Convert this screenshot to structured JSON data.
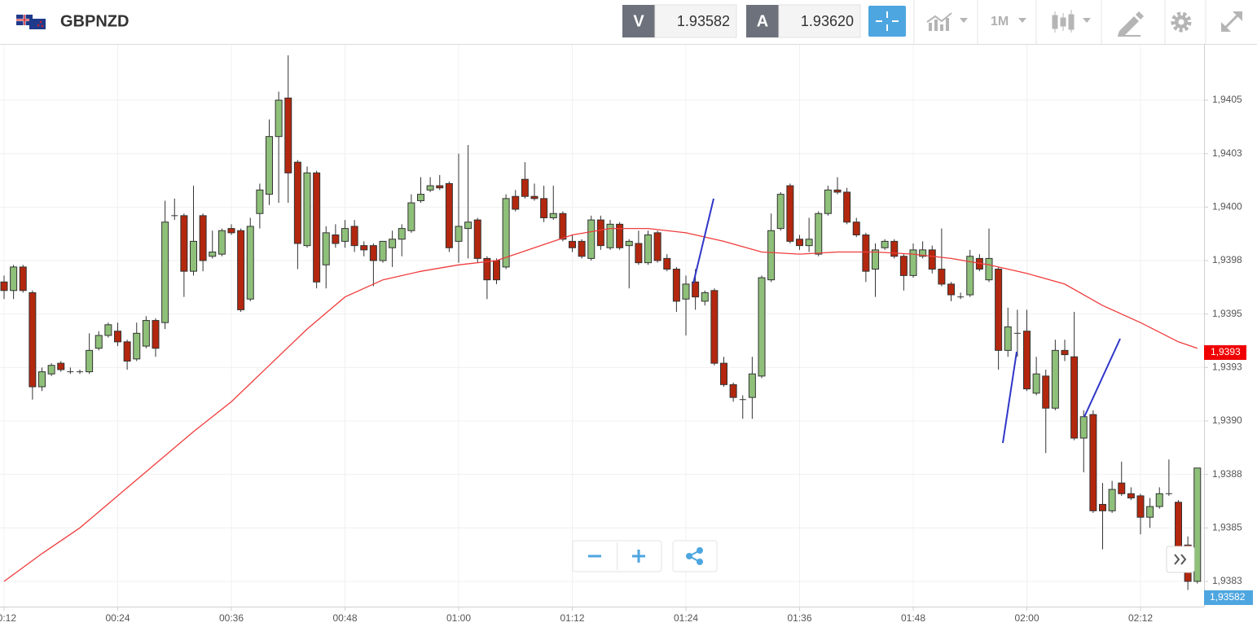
{
  "header": {
    "symbol": "GBPNZD",
    "bid_label": "V",
    "bid": "1.93582",
    "ask_label": "A",
    "ask": "1.93620",
    "timeframe": "1M"
  },
  "chart_data": {
    "type": "candlestick",
    "up_color": "#8fc07a",
    "down_color": "#b3270e",
    "grid": true,
    "xlim": [
      11.57,
      138.71
    ],
    "xticks": [
      {
        "value": 12,
        "label": "00:12"
      },
      {
        "value": 24,
        "label": "00:24"
      },
      {
        "value": 36,
        "label": "00:36"
      },
      {
        "value": 48,
        "label": "00:48"
      },
      {
        "value": 60,
        "label": "01:00"
      },
      {
        "value": 72,
        "label": "01:12"
      },
      {
        "value": 84,
        "label": "01:24"
      },
      {
        "value": 96,
        "label": "01:36"
      },
      {
        "value": 108,
        "label": "01:48"
      },
      {
        "value": 120,
        "label": "02:00"
      },
      {
        "value": 132,
        "label": "02:12"
      }
    ],
    "ylim": [
      1.938132,
      1.940759
    ],
    "yticks": [
      {
        "value": 1.9405,
        "label": "1,9405"
      },
      {
        "value": 1.94025,
        "label": "1,9403"
      },
      {
        "value": 1.94,
        "label": "1,9400"
      },
      {
        "value": 1.93975,
        "label": "1,9398"
      },
      {
        "value": 1.9395,
        "label": "1,9395"
      },
      {
        "value": 1.93925,
        "label": "1,9393"
      },
      {
        "value": 1.939,
        "label": "1,9390"
      },
      {
        "value": 1.93875,
        "label": "1,9388"
      },
      {
        "value": 1.9385,
        "label": "1,9385"
      },
      {
        "value": 1.93825,
        "label": "1,9383"
      }
    ],
    "x": [
      12,
      13,
      14,
      15,
      16,
      17,
      18,
      19,
      20,
      21,
      22,
      23,
      24,
      25,
      26,
      27,
      28,
      29,
      30,
      31,
      32,
      33,
      34,
      35,
      36,
      37,
      38,
      39,
      40,
      41,
      42,
      43,
      44,
      45,
      46,
      47,
      48,
      49,
      50,
      51,
      52,
      53,
      54,
      55,
      56,
      57,
      58,
      59,
      60,
      61,
      62,
      63,
      64,
      65,
      66,
      67,
      68,
      69,
      70,
      71,
      72,
      73,
      74,
      75,
      76,
      77,
      78,
      79,
      80,
      81,
      82,
      83,
      84,
      85,
      86,
      87,
      88,
      89,
      90,
      91,
      92,
      93,
      94,
      95,
      96,
      97,
      98,
      99,
      100,
      101,
      102,
      103,
      104,
      105,
      106,
      107,
      108,
      109,
      110,
      111,
      112,
      113,
      114,
      115,
      116,
      117,
      118,
      119,
      120,
      121,
      122,
      123,
      124,
      125,
      126,
      127,
      128,
      129,
      130,
      131,
      132,
      133,
      134,
      135,
      136,
      137,
      138
    ],
    "open": [
      1.93965,
      1.93961,
      1.93972,
      1.9396,
      1.93916,
      1.93922,
      1.93927,
      1.93923,
      1.93923,
      1.93923,
      1.93934,
      1.9394,
      1.93942,
      1.93937,
      1.93929,
      1.93935,
      1.93947,
      1.93946,
      1.93996,
      1.93996,
      1.9397,
      1.93996,
      1.93977,
      1.93978,
      1.9399,
      1.93989,
      1.93957,
      1.93997,
      1.94006,
      1.94033,
      1.94051,
      1.94021,
      1.93982,
      1.94016,
      1.93973,
      1.93987,
      1.93984,
      1.93991,
      1.93982,
      1.93982,
      1.93975,
      1.93981,
      1.93985,
      1.93989,
      1.94003,
      1.94008,
      1.9401,
      1.94011,
      1.93984,
      1.9399,
      1.93994,
      1.93976,
      1.93975,
      1.93972,
      1.94005,
      1.94013,
      1.94005,
      1.94004,
      1.93995,
      1.93997,
      1.93984,
      1.93984,
      1.93976,
      1.93994,
      1.93981,
      1.93992,
      1.93982,
      1.93983,
      1.93974,
      1.93988,
      1.93976,
      1.93971,
      1.93957,
      1.93965,
      1.93956,
      1.93961,
      1.93927,
      1.93917,
      1.9391,
      1.93911,
      1.93921,
      1.93966,
      1.9399,
      1.9401,
      1.93985,
      1.93982,
      1.93978,
      1.93997,
      1.94008,
      1.94007,
      1.93993,
      1.93987,
      1.93971,
      1.93981,
      1.93984,
      1.93977,
      1.93968,
      1.93977,
      1.9398,
      1.93971,
      1.93964,
      1.93958,
      1.93959,
      1.93976,
      1.93966,
      1.93971,
      1.93933,
      1.93941,
      1.93942,
      1.93913,
      1.93921,
      1.93906,
      1.93933,
      1.9393,
      1.93892,
      1.93903,
      1.93861,
      1.93858,
      1.93871,
      1.93866,
      1.93865,
      1.93855,
      1.9386,
      1.93866,
      1.93862,
      1.93842,
      1.93825
    ],
    "high": [
      1.93968,
      1.93973,
      1.93973,
      1.93961,
      1.93925,
      1.93927,
      1.93928,
      1.93925,
      1.93924,
      1.93941,
      1.93942,
      1.93946,
      1.93946,
      1.93938,
      1.93946,
      1.93949,
      1.93948,
      1.94003,
      1.94004,
      1.93997,
      1.9401,
      1.93997,
      1.93989,
      1.9399,
      1.93992,
      1.9399,
      1.93995,
      1.94011,
      1.94041,
      1.94054,
      1.94071,
      1.94022,
      1.94019,
      1.94017,
      1.93991,
      1.93992,
      1.93994,
      1.93994,
      1.93984,
      1.93983,
      1.93984,
      1.93989,
      1.93992,
      1.94006,
      1.94014,
      1.94014,
      1.94015,
      1.94012,
      1.94025,
      1.94029,
      1.93995,
      1.93977,
      1.93976,
      1.94006,
      1.94008,
      1.94021,
      1.94011,
      1.9401,
      1.9401,
      1.93998,
      1.93987,
      1.93985,
      1.93996,
      1.93996,
      1.93994,
      1.93993,
      1.93985,
      1.93989,
      1.93989,
      1.93989,
      1.93978,
      1.93972,
      1.93968,
      1.93971,
      1.93961,
      1.93962,
      1.9393,
      1.93918,
      1.93912,
      1.9393,
      1.93968,
      1.93997,
      1.94007,
      1.94011,
      1.93987,
      1.93995,
      1.93998,
      1.9401,
      1.94014,
      1.94009,
      1.93995,
      1.93988,
      1.93983,
      1.93985,
      1.93985,
      1.93978,
      1.93983,
      1.93984,
      1.93982,
      1.9399,
      1.93965,
      1.9396,
      1.9398,
      1.93978,
      1.9399,
      1.93972,
      1.93953,
      1.93952,
      1.93952,
      1.9393,
      1.93924,
      1.93938,
      1.93938,
      1.93951,
      1.93905,
      1.93905,
      1.93871,
      1.93872,
      1.93881,
      1.93869,
      1.93866,
      1.93864,
      1.93869,
      1.93882,
      1.93863,
      1.93846,
      1.93878
    ],
    "low": [
      1.93957,
      1.93957,
      1.9396,
      1.9391,
      1.93914,
      1.93921,
      1.93923,
      1.93922,
      1.93922,
      1.93922,
      1.93933,
      1.93939,
      1.93935,
      1.93924,
      1.93928,
      1.93934,
      1.9393,
      1.93943,
      1.93994,
      1.93958,
      1.93968,
      1.9397,
      1.93976,
      1.93977,
      1.93987,
      1.93951,
      1.93956,
      1.9399,
      1.94001,
      1.94002,
      1.94002,
      1.93971,
      1.93981,
      1.93962,
      1.93962,
      1.93981,
      1.93981,
      1.93979,
      1.93977,
      1.93963,
      1.93974,
      1.93972,
      1.93977,
      1.93988,
      1.94002,
      1.94007,
      1.94008,
      1.93979,
      1.93974,
      1.93976,
      1.93974,
      1.93957,
      1.93964,
      1.93971,
      1.93998,
      1.94004,
      1.94003,
      1.93993,
      1.93994,
      1.93984,
      1.93979,
      1.93976,
      1.93975,
      1.9398,
      1.9398,
      1.9398,
      1.93962,
      1.93973,
      1.93973,
      1.93974,
      1.9397,
      1.93951,
      1.9394,
      1.93952,
      1.93954,
      1.93926,
      1.93916,
      1.93909,
      1.93901,
      1.93901,
      1.9392,
      1.93965,
      1.93989,
      1.93983,
      1.9398,
      1.93979,
      1.93977,
      1.93996,
      1.94006,
      1.93992,
      1.93986,
      1.93965,
      1.93958,
      1.9398,
      1.93976,
      1.93961,
      1.93967,
      1.93976,
      1.93969,
      1.93963,
      1.93956,
      1.93957,
      1.93958,
      1.9397,
      1.93965,
      1.93924,
      1.9393,
      1.9393,
      1.93914,
      1.93912,
      1.93885,
      1.93905,
      1.93928,
      1.93891,
      1.93876,
      1.93857,
      1.9384,
      1.93857,
      1.93865,
      1.93863,
      1.93847,
      1.9385,
      1.93859,
      1.93865,
      1.93833,
      1.93821,
      1.93824
    ],
    "close": [
      1.93961,
      1.93972,
      1.93961,
      1.93916,
      1.93923,
      1.93926,
      1.93924,
      1.93923,
      1.93923,
      1.93933,
      1.9394,
      1.93945,
      1.93937,
      1.93928,
      1.93941,
      1.93947,
      1.93934,
      1.93993,
      1.93996,
      1.9397,
      1.93984,
      1.93975,
      1.93979,
      1.93989,
      1.93988,
      1.93952,
      1.93991,
      1.94008,
      1.94033,
      1.9405,
      1.94016,
      1.93983,
      1.94016,
      1.93965,
      1.93988,
      1.93983,
      1.9399,
      1.93982,
      1.9398,
      1.93975,
      1.93984,
      1.93985,
      1.9399,
      1.94002,
      1.94006,
      1.9401,
      1.94009,
      1.93981,
      1.93991,
      1.93993,
      1.93976,
      1.93966,
      1.93966,
      1.94004,
      1.93999,
      1.94005,
      1.94004,
      1.93995,
      1.93997,
      1.93985,
      1.93981,
      1.93977,
      1.93994,
      1.93982,
      1.93992,
      1.93981,
      1.93984,
      1.93974,
      1.93987,
      1.93975,
      1.93971,
      1.93956,
      1.93964,
      1.93958,
      1.9396,
      1.93927,
      1.93917,
      1.93911,
      1.9391,
      1.93922,
      1.93967,
      1.93989,
      1.94006,
      1.93984,
      1.93982,
      1.93985,
      1.93997,
      1.94008,
      1.94007,
      1.93993,
      1.93987,
      1.9397,
      1.9398,
      1.93984,
      1.93977,
      1.93968,
      1.9398,
      1.9398,
      1.93971,
      1.93964,
      1.93959,
      1.93958,
      1.93977,
      1.93971,
      1.93976,
      1.93933,
      1.93944,
      1.93941,
      1.93915,
      1.93922,
      1.93906,
      1.93933,
      1.93931,
      1.93892,
      1.93902,
      1.93858,
      1.93858,
      1.93868,
      1.93866,
      1.93864,
      1.93855,
      1.9386,
      1.93866,
      1.93866,
      1.93841,
      1.93825,
      1.93878
    ],
    "moving_average": {
      "color": "#f03c3c",
      "x": [
        12,
        16,
        20,
        24,
        28,
        32,
        36,
        40,
        44,
        48,
        52,
        56,
        60,
        64,
        68,
        72,
        76,
        80,
        84,
        88,
        92,
        96,
        100,
        104,
        108,
        112,
        116,
        120,
        124,
        128,
        132,
        136,
        138
      ],
      "values": [
        1.93825,
        1.93838,
        1.9385,
        1.93865,
        1.9388,
        1.93895,
        1.93909,
        1.93926,
        1.93943,
        1.93958,
        1.93966,
        1.9397,
        1.93973,
        1.93975,
        1.93981,
        1.93987,
        1.9399,
        1.9399,
        1.93988,
        1.93984,
        1.93979,
        1.93978,
        1.93979,
        1.93979,
        1.93978,
        1.93976,
        1.93973,
        1.93969,
        1.93964,
        1.93954,
        1.93946,
        1.93937,
        1.93934
      ]
    },
    "ma_label": {
      "value": 1.93932,
      "label": "1,9393"
    },
    "last_price_label": "1,93582"
  }
}
